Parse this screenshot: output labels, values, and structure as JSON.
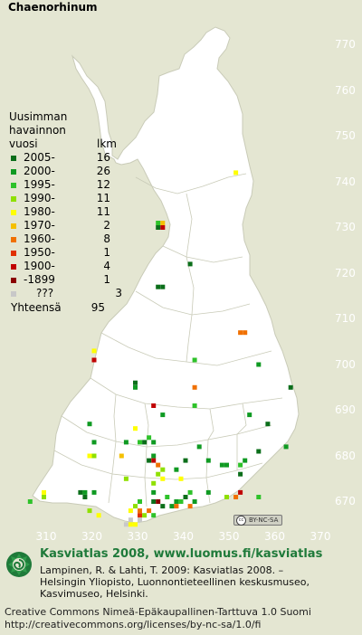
{
  "title": "Chaenorhinum",
  "map_colors": {
    "land": "#ffffff",
    "background": "#e4e6d2",
    "borders": "#c9cbb8",
    "grid_label": "#ffffff"
  },
  "legend": {
    "header_line1": "Uusimman",
    "header_line2": "havainnon",
    "header_year": "vuosi",
    "header_count": "lkm",
    "rows": [
      {
        "label": "2005-",
        "count": "16",
        "color": "#0b6e1a"
      },
      {
        "label": "2000-",
        "count": "26",
        "color": "#0f9a22"
      },
      {
        "label": "1995-",
        "count": "12",
        "color": "#2ec22a"
      },
      {
        "label": "1990-",
        "count": "11",
        "color": "#8fe000"
      },
      {
        "label": "1980-",
        "count": "11",
        "color": "#ffff00"
      },
      {
        "label": "1970-",
        "count": "2",
        "color": "#f5c000"
      },
      {
        "label": "1960-",
        "count": "8",
        "color": "#f07000"
      },
      {
        "label": "1950-",
        "count": "1",
        "color": "#e03000"
      },
      {
        "label": "1900-",
        "count": "4",
        "color": "#c00000"
      },
      {
        "label": "-1899",
        "count": "1",
        "color": "#8a0000"
      },
      {
        "label": "???",
        "count": "3",
        "color": "#c8c8c8"
      }
    ],
    "total_label": "Yhteensä",
    "total_count": "95"
  },
  "grid": {
    "y_labels": [
      "770",
      "760",
      "750",
      "740",
      "730",
      "720",
      "710",
      "700",
      "690",
      "680",
      "670"
    ],
    "x_labels": [
      "310",
      "320",
      "330",
      "340",
      "350",
      "360",
      "370"
    ]
  },
  "observations": [
    {
      "e": 351.5,
      "n": 741.5,
      "period": "1980-"
    },
    {
      "e": 334.5,
      "n": 730.5,
      "period": "1995-"
    },
    {
      "e": 335.5,
      "n": 730.5,
      "period": "1970-"
    },
    {
      "e": 334.5,
      "n": 729.5,
      "period": "2005-"
    },
    {
      "e": 335.5,
      "n": 729.5,
      "period": "1900-"
    },
    {
      "e": 341.5,
      "n": 721.5,
      "period": "2005-"
    },
    {
      "e": 334.5,
      "n": 716.5,
      "period": "2005-"
    },
    {
      "e": 335.5,
      "n": 716.5,
      "period": "2005-"
    },
    {
      "e": 352.5,
      "n": 706.5,
      "period": "1960-"
    },
    {
      "e": 353.5,
      "n": 706.5,
      "period": "1960-"
    },
    {
      "e": 320.5,
      "n": 702.5,
      "period": "1980-"
    },
    {
      "e": 320.5,
      "n": 700.5,
      "period": "1900-"
    },
    {
      "e": 342.5,
      "n": 700.5,
      "period": "1995-"
    },
    {
      "e": 356.5,
      "n": 699.5,
      "period": "2000-"
    },
    {
      "e": 329.5,
      "n": 695.5,
      "period": "2005-"
    },
    {
      "e": 329.5,
      "n": 694.5,
      "period": "2000-"
    },
    {
      "e": 342.5,
      "n": 694.5,
      "period": "1960-"
    },
    {
      "e": 363.5,
      "n": 694.5,
      "period": "2005-"
    },
    {
      "e": 333.5,
      "n": 690.5,
      "period": "1900-"
    },
    {
      "e": 342.5,
      "n": 690.5,
      "period": "1995-"
    },
    {
      "e": 335.5,
      "n": 688.5,
      "period": "2000-"
    },
    {
      "e": 354.5,
      "n": 688.5,
      "period": "2000-"
    },
    {
      "e": 319.5,
      "n": 686.5,
      "period": "2000-"
    },
    {
      "e": 358.5,
      "n": 686.5,
      "period": "2005-"
    },
    {
      "e": 329.5,
      "n": 685.5,
      "period": "1980-"
    },
    {
      "e": 332.5,
      "n": 683.5,
      "period": "1995-"
    },
    {
      "e": 331.5,
      "n": 682.5,
      "period": "2005-"
    },
    {
      "e": 330.5,
      "n": 682.5,
      "period": "1995-"
    },
    {
      "e": 327.5,
      "n": 682.5,
      "period": "2000-"
    },
    {
      "e": 320.5,
      "n": 682.5,
      "period": "2000-"
    },
    {
      "e": 333.5,
      "n": 682.5,
      "period": "2000-"
    },
    {
      "e": 343.5,
      "n": 681.5,
      "period": "2000-"
    },
    {
      "e": 362.5,
      "n": 681.5,
      "period": "2000-"
    },
    {
      "e": 356.5,
      "n": 680.5,
      "period": "2005-"
    },
    {
      "e": 333.5,
      "n": 679.5,
      "period": "2000-"
    },
    {
      "e": 319.5,
      "n": 679.5,
      "period": "1980-"
    },
    {
      "e": 320.5,
      "n": 679.5,
      "period": "1990-"
    },
    {
      "e": 326.5,
      "n": 679.5,
      "period": "1970-"
    },
    {
      "e": 333.5,
      "n": 678.5,
      "period": "1900-"
    },
    {
      "e": 332.5,
      "n": 678.5,
      "period": "2005-"
    },
    {
      "e": 334.5,
      "n": 677.5,
      "period": "1960-"
    },
    {
      "e": 340.5,
      "n": 678.5,
      "period": "2005-"
    },
    {
      "e": 345.5,
      "n": 678.5,
      "period": "2000-"
    },
    {
      "e": 348.5,
      "n": 677.5,
      "period": "2000-"
    },
    {
      "e": 349.5,
      "n": 677.5,
      "period": "2000-"
    },
    {
      "e": 353.5,
      "n": 678.5,
      "period": "2000-"
    },
    {
      "e": 352.5,
      "n": 677.5,
      "period": "1995-"
    },
    {
      "e": 335.5,
      "n": 676.5,
      "period": "1990-"
    },
    {
      "e": 338.5,
      "n": 676.5,
      "period": "2000-"
    },
    {
      "e": 352.5,
      "n": 675.5,
      "period": "2005-"
    },
    {
      "e": 334.5,
      "n": 675.5,
      "period": "1990-"
    },
    {
      "e": 327.5,
      "n": 674.5,
      "period": "1990-"
    },
    {
      "e": 335.5,
      "n": 674.5,
      "period": "1980-"
    },
    {
      "e": 339.5,
      "n": 674.5,
      "period": "1980-"
    },
    {
      "e": 333.5,
      "n": 673.5,
      "period": "1990-"
    },
    {
      "e": 309.5,
      "n": 671.5,
      "period": "1980-"
    },
    {
      "e": 317.5,
      "n": 671.5,
      "period": "2005-"
    },
    {
      "e": 318.5,
      "n": 671.5,
      "period": "2000-"
    },
    {
      "e": 320.5,
      "n": 671.5,
      "period": "2000-"
    },
    {
      "e": 318.5,
      "n": 670.5,
      "period": "2005-"
    },
    {
      "e": 333.5,
      "n": 671.5,
      "period": "2000-"
    },
    {
      "e": 336.5,
      "n": 670.5,
      "period": "1995-"
    },
    {
      "e": 340.5,
      "n": 670.5,
      "period": "2005-"
    },
    {
      "e": 341.5,
      "n": 671.5,
      "period": "1995-"
    },
    {
      "e": 345.5,
      "n": 671.5,
      "period": "2000-"
    },
    {
      "e": 349.5,
      "n": 670.5,
      "period": "1990-"
    },
    {
      "e": 351.5,
      "n": 670.5,
      "period": "1960-"
    },
    {
      "e": 352.5,
      "n": 671.5,
      "period": "1900-"
    },
    {
      "e": 356.5,
      "n": 670.5,
      "period": "1995-"
    },
    {
      "e": 309.5,
      "n": 670.5,
      "period": "1990-"
    },
    {
      "e": 306.5,
      "n": 669.5,
      "period": "1995-"
    },
    {
      "e": 330.5,
      "n": 669.5,
      "period": "1995-"
    },
    {
      "e": 333.5,
      "n": 669.5,
      "period": "2005-"
    },
    {
      "e": 334.5,
      "n": 669.5,
      "period": "-1899"
    },
    {
      "e": 338.5,
      "n": 669.5,
      "period": "2000-"
    },
    {
      "e": 339.5,
      "n": 669.5,
      "period": "1995-"
    },
    {
      "e": 342.5,
      "n": 669.5,
      "period": "2000-"
    },
    {
      "e": 335.5,
      "n": 668.5,
      "period": "2005-"
    },
    {
      "e": 337.5,
      "n": 668.5,
      "period": "2000-"
    },
    {
      "e": 338.5,
      "n": 668.5,
      "period": "1960-"
    },
    {
      "e": 341.5,
      "n": 668.5,
      "period": "1960-"
    },
    {
      "e": 330.5,
      "n": 667.5,
      "period": "1960-"
    },
    {
      "e": 332.5,
      "n": 667.5,
      "period": "1960-"
    },
    {
      "e": 319.5,
      "n": 667.5,
      "period": "1990-"
    },
    {
      "e": 328.5,
      "n": 667.5,
      "period": "1980-"
    },
    {
      "e": 329.5,
      "n": 668.5,
      "period": "1990-"
    },
    {
      "e": 321.5,
      "n": 666.5,
      "period": "1980-"
    },
    {
      "e": 330.5,
      "n": 666.5,
      "period": "1950-"
    },
    {
      "e": 333.5,
      "n": 666.5,
      "period": "1995-"
    },
    {
      "e": 331.5,
      "n": 666.5,
      "period": "1990-"
    },
    {
      "e": 330.5,
      "n": 665.5,
      "period": "???"
    },
    {
      "e": 328.5,
      "n": 665.5,
      "period": "???"
    },
    {
      "e": 327.5,
      "n": 664.5,
      "period": "???"
    },
    {
      "e": 328.5,
      "n": 664.5,
      "period": "1980-"
    },
    {
      "e": 329.5,
      "n": 664.5,
      "period": "1980-"
    }
  ],
  "license_badge": "BY-NC-SA",
  "footer": {
    "brand": "Kasviatlas 2008, www.luomus.fi/kasviatlas",
    "citation_line1": "Lampinen, R. & Lahti, T. 2009: Kasviatlas 2008. –",
    "citation_line2": "Helsingin Yliopisto, Luonnontieteellinen keskusmuseo,",
    "citation_line3": "Kasvimuseo, Helsinki.",
    "license_line1": "Creative Commons Nimeä-Epäkaupallinen-Tarttuva 1.0 Suomi",
    "license_line2": "http://creativecommons.org/licenses/by-nc-sa/1.0/fi"
  }
}
